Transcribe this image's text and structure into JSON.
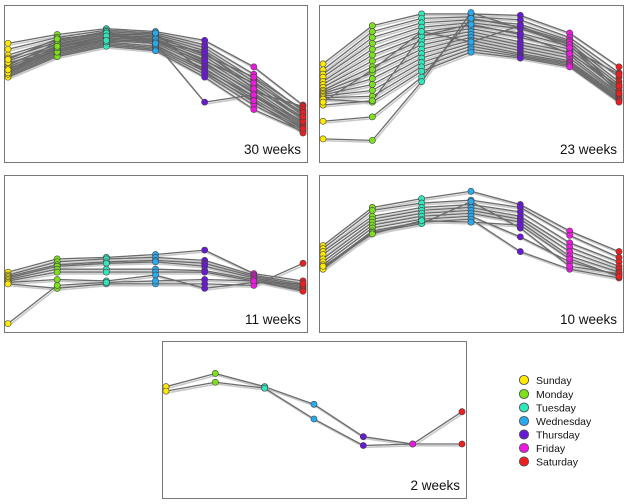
{
  "chart_data": [
    {
      "type": "line",
      "label": "30 weeks",
      "categories": [
        "Sunday",
        "Monday",
        "Tuesday",
        "Wednesday",
        "Thursday",
        "Friday",
        "Saturday"
      ],
      "ylim": [
        0,
        100
      ],
      "series": [
        {
          "values": [
            78,
            84,
            88,
            86,
            80,
            62,
            36
          ]
        },
        {
          "values": [
            74,
            82,
            87,
            85,
            77,
            57,
            32
          ]
        },
        {
          "values": [
            70,
            80,
            86,
            84,
            75,
            54,
            30
          ]
        },
        {
          "values": [
            68,
            79,
            85,
            83,
            73,
            52,
            29
          ]
        },
        {
          "values": [
            66,
            77,
            84,
            82,
            71,
            50,
            27
          ]
        },
        {
          "values": [
            64,
            76,
            83,
            81,
            69,
            48,
            26
          ]
        },
        {
          "values": [
            62,
            75,
            82,
            80,
            67,
            46,
            24
          ]
        },
        {
          "values": [
            60,
            74,
            81,
            79,
            65,
            44,
            23
          ]
        },
        {
          "values": [
            59,
            73,
            80,
            78,
            63,
            42,
            22
          ]
        },
        {
          "values": [
            58,
            72,
            79,
            76,
            61,
            40,
            21
          ]
        },
        {
          "values": [
            57,
            71,
            78,
            75,
            59,
            38,
            20
          ]
        },
        {
          "values": [
            56,
            70,
            77,
            74,
            57,
            36,
            19
          ]
        },
        {
          "values": [
            55,
            69,
            76,
            73,
            55,
            33,
            18
          ]
        },
        {
          "values": [
            63,
            78,
            84,
            80,
            64,
            45,
            35
          ]
        },
        {
          "values": [
            61,
            73,
            81,
            83,
            70,
            55,
            33
          ]
        },
        {
          "values": [
            57,
            80,
            86,
            77,
            60,
            42,
            25
          ]
        },
        {
          "values": [
            65,
            72,
            79,
            81,
            66,
            51,
            31
          ]
        },
        {
          "values": [
            67,
            81,
            85,
            79,
            72,
            47,
            28
          ]
        },
        {
          "values": [
            58,
            75,
            83,
            85,
            58,
            39,
            17
          ]
        },
        {
          "values": [
            60,
            76,
            80,
            78,
            38,
            43,
            20
          ]
        }
      ]
    },
    {
      "type": "line",
      "label": "23 weeks",
      "categories": [
        "Sunday",
        "Monday",
        "Tuesday",
        "Wednesday",
        "Thursday",
        "Friday",
        "Saturday"
      ],
      "ylim": [
        0,
        100
      ],
      "series": [
        {
          "values": [
            64,
            90,
            98,
            98,
            97,
            85,
            62
          ]
        },
        {
          "values": [
            60,
            86,
            95,
            96,
            94,
            82,
            58
          ]
        },
        {
          "values": [
            57,
            82,
            92,
            94,
            91,
            80,
            55
          ]
        },
        {
          "values": [
            55,
            78,
            89,
            92,
            88,
            78,
            52
          ]
        },
        {
          "values": [
            52,
            74,
            86,
            90,
            85,
            76,
            50
          ]
        },
        {
          "values": [
            50,
            70,
            83,
            88,
            82,
            74,
            48
          ]
        },
        {
          "values": [
            48,
            66,
            80,
            86,
            79,
            72,
            46
          ]
        },
        {
          "values": [
            46,
            62,
            77,
            84,
            77,
            70,
            44
          ]
        },
        {
          "values": [
            45,
            58,
            74,
            82,
            75,
            68,
            43
          ]
        },
        {
          "values": [
            44,
            54,
            71,
            80,
            73,
            66,
            42
          ]
        },
        {
          "values": [
            43,
            50,
            68,
            78,
            71,
            65,
            41
          ]
        },
        {
          "values": [
            42,
            46,
            65,
            76,
            70,
            64,
            40
          ]
        },
        {
          "values": [
            41,
            42,
            62,
            74,
            69,
            63,
            39
          ]
        },
        {
          "values": [
            40,
            38,
            59,
            72,
            68,
            62,
            38
          ]
        },
        {
          "values": [
            25,
            28,
            55,
            95,
            89,
            79,
            46
          ]
        },
        {
          "values": [
            13,
            12,
            52,
            99,
            88,
            77,
            44
          ]
        },
        {
          "values": [
            36,
            39,
            83,
            91,
            84,
            71,
            49
          ]
        },
        {
          "values": [
            38,
            60,
            86,
            79,
            90,
            75,
            57
          ]
        }
      ]
    },
    {
      "type": "line",
      "label": "11 weeks",
      "categories": [
        "Sunday",
        "Monday",
        "Tuesday",
        "Wednesday",
        "Thursday",
        "Friday",
        "Saturday"
      ],
      "ylim": [
        0,
        100
      ],
      "series": [
        {
          "values": [
            38,
            47,
            48,
            50,
            53,
            37,
            32
          ]
        },
        {
          "values": [
            36,
            45,
            47,
            48,
            46,
            36,
            30
          ]
        },
        {
          "values": [
            35,
            43,
            45,
            46,
            44,
            35,
            29
          ]
        },
        {
          "values": [
            34,
            42,
            44,
            45,
            42,
            34,
            28
          ]
        },
        {
          "values": [
            33,
            40,
            40,
            40,
            39,
            33,
            27
          ]
        },
        {
          "values": [
            32,
            38,
            38,
            38,
            38,
            32,
            26
          ]
        },
        {
          "values": [
            31,
            33,
            32,
            36,
            27,
            31,
            30
          ]
        },
        {
          "values": [
            30,
            27,
            30,
            30,
            30,
            29,
            44
          ]
        },
        {
          "values": [
            3,
            29,
            31,
            32,
            33,
            32,
            25
          ]
        }
      ]
    },
    {
      "type": "line",
      "label": "10 weeks",
      "categories": [
        "Sunday",
        "Monday",
        "Tuesday",
        "Wednesday",
        "Thursday",
        "Friday",
        "Saturday"
      ],
      "ylim": [
        0,
        100
      ],
      "series": [
        {
          "values": [
            56,
            82,
            88,
            93,
            84,
            66,
            52
          ]
        },
        {
          "values": [
            54,
            80,
            85,
            87,
            82,
            63,
            48
          ]
        },
        {
          "values": [
            52,
            76,
            82,
            84,
            79,
            58,
            45
          ]
        },
        {
          "values": [
            50,
            74,
            80,
            82,
            76,
            55,
            42
          ]
        },
        {
          "values": [
            47,
            72,
            78,
            80,
            74,
            52,
            40
          ]
        },
        {
          "values": [
            45,
            70,
            76,
            78,
            72,
            49,
            38
          ]
        },
        {
          "values": [
            43,
            68,
            74,
            76,
            62,
            45,
            36
          ]
        },
        {
          "values": [
            41,
            66,
            72,
            74,
            52,
            40,
            34
          ]
        },
        {
          "values": [
            40,
            65,
            71,
            86,
            68,
            42,
            37
          ]
        },
        {
          "values": [
            42,
            64,
            73,
            72,
            70,
            47,
            35
          ]
        }
      ]
    },
    {
      "type": "line",
      "label": "2 weeks",
      "categories": [
        "Sunday",
        "Monday",
        "Tuesday",
        "Wednesday",
        "Thursday",
        "Friday",
        "Saturday"
      ],
      "ylim": [
        0,
        100
      ],
      "series": [
        {
          "values": [
            73,
            82,
            73,
            61,
            39,
            34,
            56
          ]
        },
        {
          "values": [
            70,
            76,
            72,
            51,
            33,
            34,
            34
          ]
        }
      ]
    }
  ],
  "legend": {
    "items": [
      {
        "label": "Sunday",
        "color": "#ffea00"
      },
      {
        "label": "Monday",
        "color": "#7be11a"
      },
      {
        "label": "Tuesday",
        "color": "#2ee8bc"
      },
      {
        "label": "Wednesday",
        "color": "#27aaf0"
      },
      {
        "label": "Thursday",
        "color": "#6a17d8"
      },
      {
        "label": "Friday",
        "color": "#ee18e0"
      },
      {
        "label": "Saturday",
        "color": "#ef1d1d"
      }
    ]
  },
  "colors": {
    "line": "#6b6b6b",
    "line_shadow": "#c9c9c9",
    "frame": "#777777"
  }
}
